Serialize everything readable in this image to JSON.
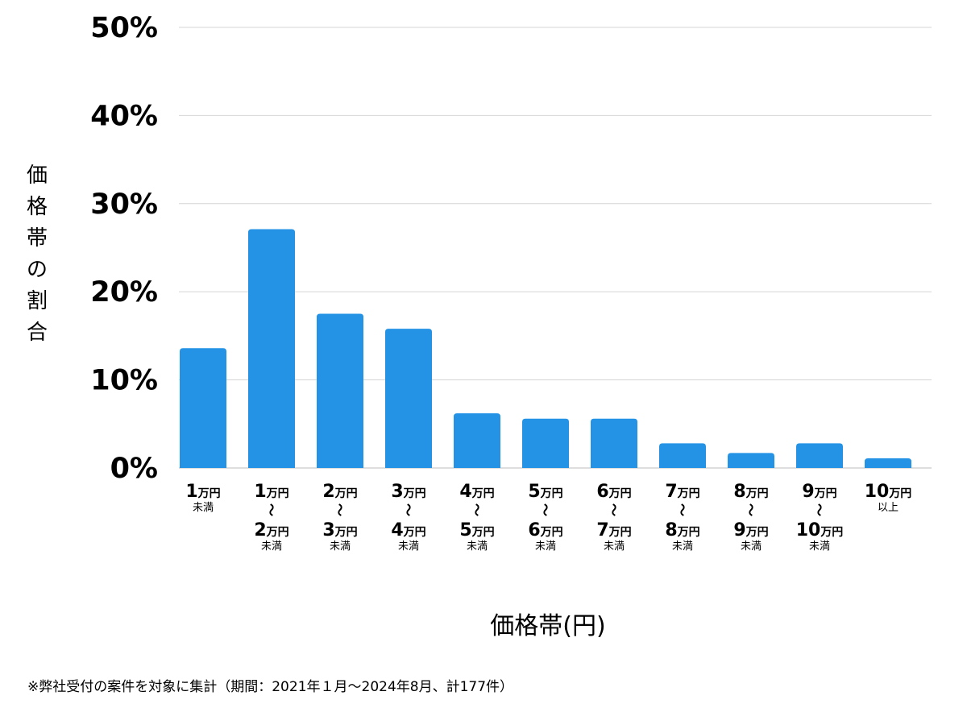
{
  "chart_data": {
    "type": "bar",
    "ylabel": "価格帯の割合",
    "xlabel": "価格帯(円)",
    "ylim": [
      0,
      50
    ],
    "yticks": [
      0,
      10,
      20,
      30,
      40,
      50
    ],
    "ytick_suffix": "%",
    "grid": true,
    "bar_color": "#2493e6",
    "categories": [
      {
        "lines": [
          {
            "num": "1",
            "unit": "万円"
          },
          {
            "small": "未満"
          }
        ]
      },
      {
        "lines": [
          {
            "num": "1",
            "unit": "万円"
          },
          {
            "tilde": "〜"
          },
          {
            "num": "2",
            "unit": "万円"
          },
          {
            "small": "未満"
          }
        ]
      },
      {
        "lines": [
          {
            "num": "2",
            "unit": "万円"
          },
          {
            "tilde": "〜"
          },
          {
            "num": "3",
            "unit": "万円"
          },
          {
            "small": "未満"
          }
        ]
      },
      {
        "lines": [
          {
            "num": "3",
            "unit": "万円"
          },
          {
            "tilde": "〜"
          },
          {
            "num": "4",
            "unit": "万円"
          },
          {
            "small": "未満"
          }
        ]
      },
      {
        "lines": [
          {
            "num": "4",
            "unit": "万円"
          },
          {
            "tilde": "〜"
          },
          {
            "num": "5",
            "unit": "万円"
          },
          {
            "small": "未満"
          }
        ]
      },
      {
        "lines": [
          {
            "num": "5",
            "unit": "万円"
          },
          {
            "tilde": "〜"
          },
          {
            "num": "6",
            "unit": "万円"
          },
          {
            "small": "未満"
          }
        ]
      },
      {
        "lines": [
          {
            "num": "6",
            "unit": "万円"
          },
          {
            "tilde": "〜"
          },
          {
            "num": "7",
            "unit": "万円"
          },
          {
            "small": "未満"
          }
        ]
      },
      {
        "lines": [
          {
            "num": "7",
            "unit": "万円"
          },
          {
            "tilde": "〜"
          },
          {
            "num": "8",
            "unit": "万円"
          },
          {
            "small": "未満"
          }
        ]
      },
      {
        "lines": [
          {
            "num": "8",
            "unit": "万円"
          },
          {
            "tilde": "〜"
          },
          {
            "num": "9",
            "unit": "万円"
          },
          {
            "small": "未満"
          }
        ]
      },
      {
        "lines": [
          {
            "num": "9",
            "unit": "万円"
          },
          {
            "tilde": "〜"
          },
          {
            "num": "10",
            "unit": "万円"
          },
          {
            "small": "未満"
          }
        ]
      },
      {
        "lines": [
          {
            "num": "10",
            "unit": "万円"
          },
          {
            "small": "以上"
          }
        ]
      }
    ],
    "values": [
      13.6,
      27.1,
      17.5,
      15.8,
      6.2,
      5.6,
      5.6,
      2.8,
      1.7,
      2.8,
      1.1
    ]
  },
  "footnote": "※弊社受付の案件を対象に集計（期間：2021年１月〜2024年8月、計177件）"
}
